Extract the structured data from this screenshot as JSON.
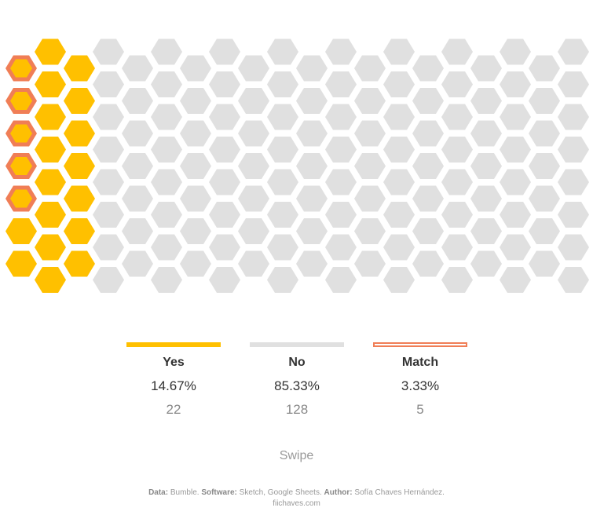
{
  "chart_data": {
    "type": "hexagon-waffle",
    "total": 150,
    "categories": [
      {
        "name": "Yes",
        "percent": "14.67%",
        "count": "22",
        "color": "#FFC000"
      },
      {
        "name": "No",
        "percent": "85.33%",
        "count": "128",
        "color": "#E0E0E0"
      },
      {
        "name": "Match",
        "percent": "3.33%",
        "count": "5",
        "color": "#F07E56"
      }
    ],
    "yes_count": 22,
    "no_count": 128,
    "match_count": 5
  },
  "footer": {
    "swipe": "Swipe",
    "data_label": "Data:",
    "data_value": "Bumble.",
    "software_label": "Software:",
    "software_value": "Sketch, Google Sheets.",
    "author_label": "Author:",
    "author_value": "Sofía Chaves Hernández.",
    "site": "fiichaves.com"
  }
}
